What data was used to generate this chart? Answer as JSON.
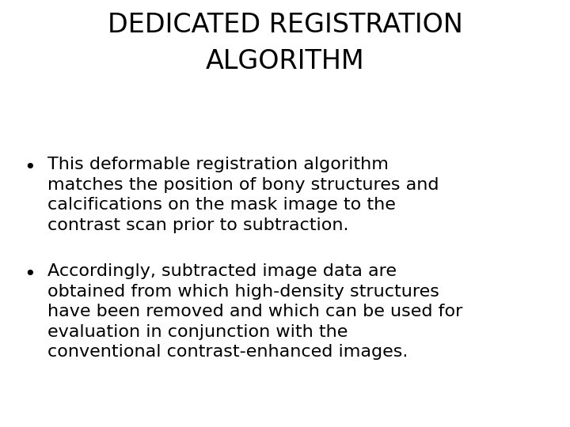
{
  "title_line1": "DEDICATED REGISTRATION",
  "title_line2": "ALGORITHM",
  "bullet1_line1": "This deformable registration algorithm",
  "bullet1_line2": "matches the position of bony structures and",
  "bullet1_line3": "calcifications on the mask image to the",
  "bullet1_line4": "contrast scan prior to subtraction.",
  "bullet2_line1": "Accordingly, subtracted image data are",
  "bullet2_line2": "obtained from which high-density structures",
  "bullet2_line3": "have been removed and which can be used for",
  "bullet2_line4": "evaluation in conjunction with the",
  "bullet2_line5": "conventional contrast-enhanced images.",
  "background_color": "#ffffff",
  "text_color": "#000000",
  "title_fontsize": 24,
  "body_fontsize": 16,
  "font_family": "DejaVu Sans"
}
